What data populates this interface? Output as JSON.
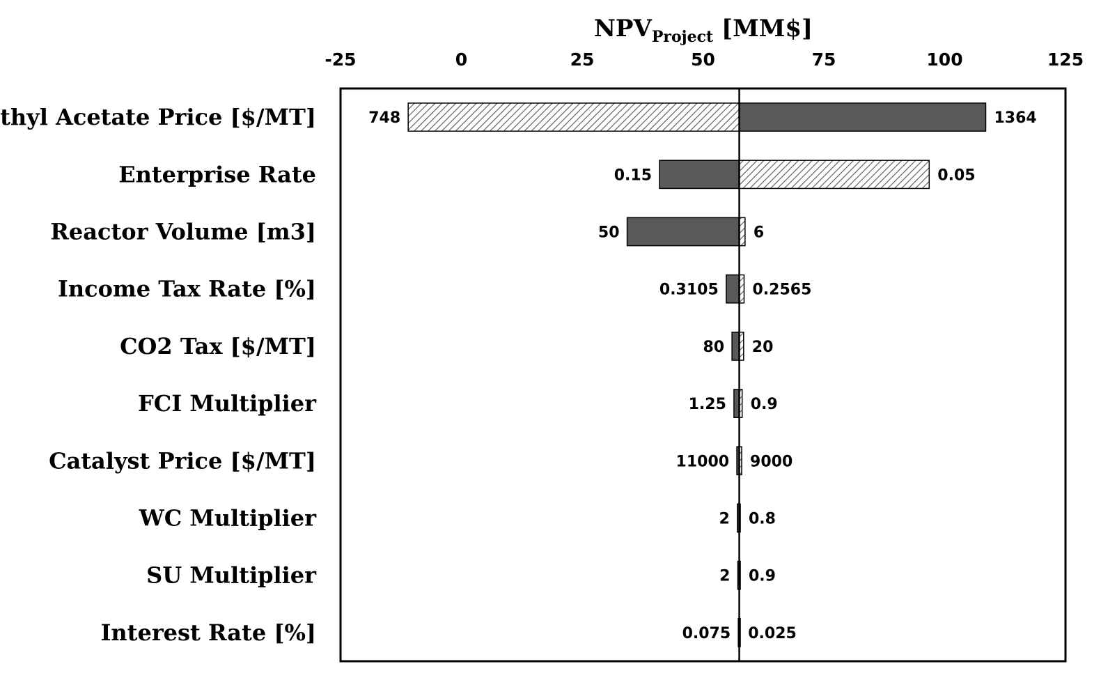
{
  "chart_data": {
    "type": "bar",
    "subtype": "tornado",
    "title": {
      "main": "NPV",
      "subscript": "Project",
      "unit": " [MM$]"
    },
    "x_axis_position": "top",
    "xlim": [
      -25,
      125
    ],
    "xticks": [
      "-25",
      "0",
      "25",
      "50",
      "75",
      "100",
      "125"
    ],
    "xtick_values": [
      -25,
      0,
      25,
      50,
      75,
      100,
      125
    ],
    "base_value": 57.5,
    "legend": "none",
    "grid": false,
    "colors": {
      "solid": "#595959",
      "hatch": "#ffffff",
      "outline": "#000000"
    },
    "categories": [
      "Ethyl Acetate Price [$/MT]",
      "Enterprise Rate",
      "Reactor Volume [m3]",
      "Income Tax Rate [%]",
      "CO2 Tax [$/MT]",
      "FCI Multiplier",
      "Catalyst Price [$/MT]",
      "WC Multiplier",
      "SU Multiplier",
      "Interest Rate [%]"
    ],
    "bars": [
      {
        "left_value": -11,
        "left_label": "748",
        "left_fill": "hatch",
        "right_value": 108.5,
        "right_label": "1364",
        "right_fill": "solid"
      },
      {
        "left_value": 41,
        "left_label": "0.15",
        "left_fill": "solid",
        "right_value": 96.8,
        "right_label": "0.05",
        "right_fill": "hatch"
      },
      {
        "left_value": 34.3,
        "left_label": "50",
        "left_fill": "solid",
        "right_value": 58.7,
        "right_label": "6",
        "right_fill": "hatch"
      },
      {
        "left_value": 54.8,
        "left_label": "0.3105",
        "left_fill": "solid",
        "right_value": 58.5,
        "right_label": "0.2565",
        "right_fill": "hatch"
      },
      {
        "left_value": 56,
        "left_label": "80",
        "left_fill": "solid",
        "right_value": 58.4,
        "right_label": "20",
        "right_fill": "hatch"
      },
      {
        "left_value": 56.4,
        "left_label": "1.25",
        "left_fill": "solid",
        "right_value": 58.1,
        "right_label": "0.9",
        "right_fill": "hatch"
      },
      {
        "left_value": 57,
        "left_label": "11000",
        "left_fill": "solid",
        "right_value": 58.0,
        "right_label": "9000",
        "right_fill": "hatch"
      },
      {
        "left_value": 57.1,
        "left_label": "2",
        "left_fill": "solid",
        "right_value": 57.7,
        "right_label": "0.8",
        "right_fill": "hatch"
      },
      {
        "left_value": 57.2,
        "left_label": "2",
        "left_fill": "solid",
        "right_value": 57.7,
        "right_label": "0.9",
        "right_fill": "hatch"
      },
      {
        "left_value": 57.3,
        "left_label": "0.075",
        "left_fill": "solid",
        "right_value": 57.6,
        "right_label": "0.025",
        "right_fill": "hatch"
      }
    ]
  }
}
